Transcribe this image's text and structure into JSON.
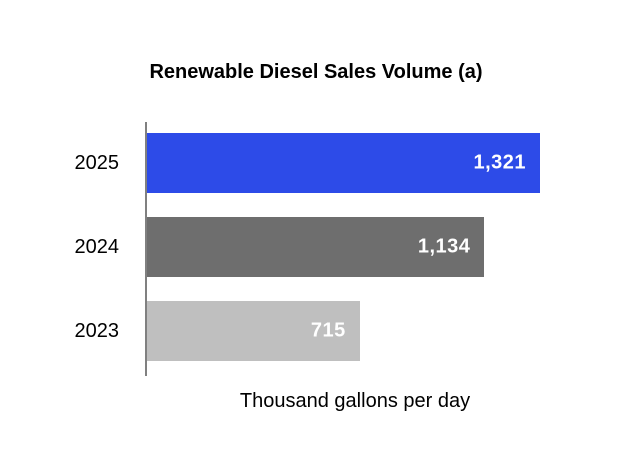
{
  "chart_data": {
    "type": "bar",
    "orientation": "horizontal",
    "title": "Renewable Diesel Sales Volume (a)",
    "xlabel": "Thousand gallons per day",
    "ylabel": "",
    "categories": [
      "2025",
      "2024",
      "2023"
    ],
    "values": [
      1321,
      1134,
      715
    ],
    "value_labels": [
      "1,321",
      "1,134",
      "715"
    ],
    "bar_colors": [
      "#2D4BE8",
      "#6E6E6E",
      "#BFBFBF"
    ],
    "value_label_color": "#FFFFFF",
    "axis_color": "#808080",
    "xlim": [
      0,
      1630
    ],
    "grid": false,
    "legend": false
  }
}
